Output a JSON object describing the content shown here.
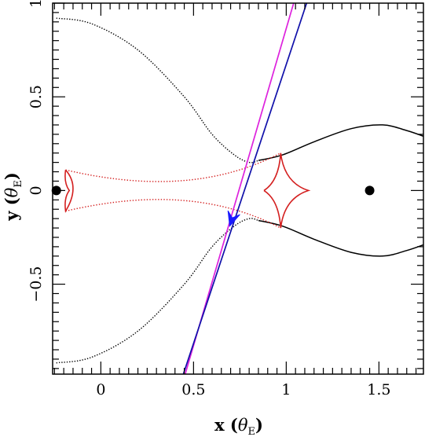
{
  "chart_data": {
    "type": "line",
    "xlabel": "x (θE)",
    "ylabel": "y (θE)",
    "xlabel_parts": {
      "var": "x",
      "open": " (",
      "theta": "θ",
      "sub": "E",
      "close": ")"
    },
    "ylabel_parts": {
      "var": "y",
      "open": " (",
      "theta": "θ",
      "sub": "E",
      "close": ")"
    },
    "xlim": [
      -0.26,
      1.74
    ],
    "ylim": [
      -0.98,
      1.0
    ],
    "x_ticks": [
      {
        "value": 0,
        "label": "0"
      },
      {
        "value": 0.5,
        "label": "0.5"
      },
      {
        "value": 1,
        "label": "1"
      },
      {
        "value": 1.5,
        "label": "1.5"
      }
    ],
    "y_ticks": [
      {
        "value": -0.5,
        "label": "−0.5"
      },
      {
        "value": 0,
        "label": "0"
      },
      {
        "value": 0.5,
        "label": "0.5"
      },
      {
        "value": 1,
        "label": "1"
      }
    ],
    "lens_positions": [
      {
        "x": -0.24,
        "y": 0
      },
      {
        "x": 1.45,
        "y": 0
      }
    ],
    "caustic": {
      "color": "#d42020",
      "cusps": [
        {
          "x": -0.19,
          "y": 0.11
        },
        {
          "x": -0.19,
          "y": -0.11
        },
        {
          "x": -0.17,
          "y": 0
        },
        {
          "x": 0.97,
          "y": 0.2
        },
        {
          "x": 0.97,
          "y": -0.2
        },
        {
          "x": 1.12,
          "y": 0
        },
        {
          "x": 0.88,
          "y": 0
        }
      ]
    },
    "critical_curve": {
      "color": "#000000",
      "upper_left": [
        [
          -0.24,
          0.92
        ],
        [
          -0.05,
          0.89
        ],
        [
          0.2,
          0.75
        ],
        [
          0.45,
          0.5
        ],
        [
          0.6,
          0.3
        ],
        [
          0.72,
          0.19
        ],
        [
          0.8,
          0.15
        ],
        [
          0.85,
          0.16
        ]
      ],
      "upper_right": [
        [
          0.85,
          0.16
        ],
        [
          0.98,
          0.19
        ],
        [
          1.15,
          0.26
        ],
        [
          1.35,
          0.33
        ],
        [
          1.52,
          0.35
        ],
        [
          1.65,
          0.32
        ],
        [
          1.74,
          0.29
        ]
      ],
      "lower_left": [
        [
          -0.24,
          -0.92
        ],
        [
          -0.05,
          -0.89
        ],
        [
          0.2,
          -0.75
        ],
        [
          0.45,
          -0.5
        ],
        [
          0.6,
          -0.3
        ],
        [
          0.72,
          -0.19
        ],
        [
          0.8,
          -0.15
        ],
        [
          0.85,
          -0.16
        ]
      ],
      "lower_right": [
        [
          0.85,
          -0.16
        ],
        [
          0.98,
          -0.19
        ],
        [
          1.15,
          -0.26
        ],
        [
          1.35,
          -0.33
        ],
        [
          1.52,
          -0.35
        ],
        [
          1.65,
          -0.32
        ],
        [
          1.74,
          -0.29
        ]
      ]
    },
    "trajectories": [
      {
        "color": "#dd22dd",
        "points": [
          [
            0.455,
            -0.98
          ],
          [
            1.04,
            1.0
          ]
        ]
      },
      {
        "color": "#1010aa",
        "points": [
          [
            0.445,
            -0.98
          ],
          [
            1.11,
            1.0
          ]
        ]
      }
    ],
    "arrow": {
      "color": "#1a1aff",
      "tip": {
        "x": 0.695,
        "y": -0.19
      },
      "from": {
        "x": 0.73,
        "y": -0.08
      }
    }
  }
}
